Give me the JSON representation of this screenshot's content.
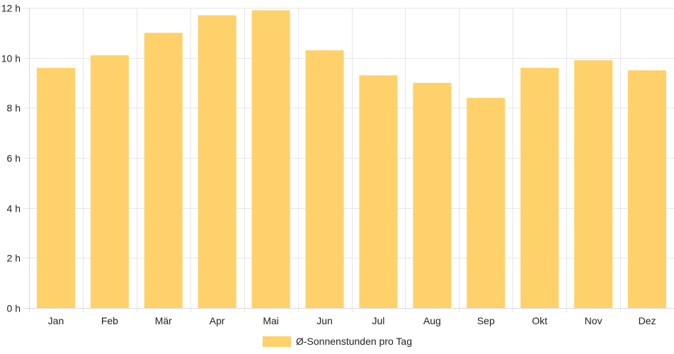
{
  "chart_data": {
    "type": "bar",
    "categories": [
      "Jan",
      "Feb",
      "Mär",
      "Apr",
      "Mai",
      "Jun",
      "Jul",
      "Aug",
      "Sep",
      "Okt",
      "Nov",
      "Dez"
    ],
    "series": [
      {
        "name": "Ø-Sonnenstunden pro Tag",
        "values": [
          9.6,
          10.1,
          11.0,
          11.7,
          11.9,
          10.3,
          9.3,
          9.0,
          8.4,
          9.6,
          9.9,
          9.5
        ],
        "color": "#fed16a"
      }
    ],
    "y_ticks": [
      "0 h",
      "2 h",
      "4 h",
      "6 h",
      "8 h",
      "10 h",
      "12 h"
    ],
    "ylim": [
      0,
      12
    ],
    "grid": true,
    "legend_position": "bottom"
  }
}
